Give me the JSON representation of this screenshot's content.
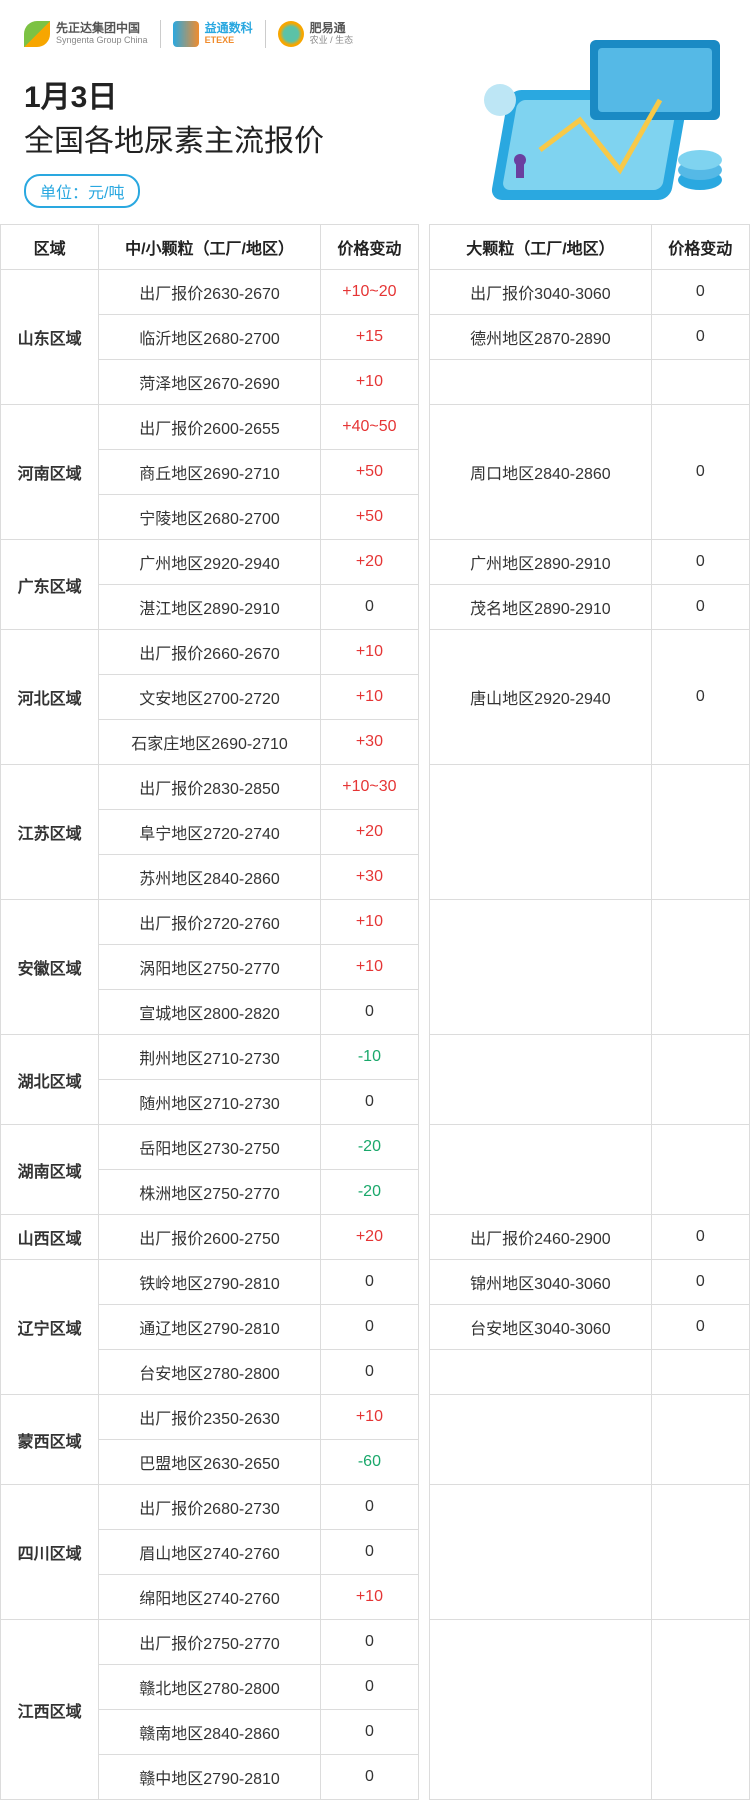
{
  "colors": {
    "border": "#dcdcdc",
    "accent": "#2aa8e0",
    "text": "#333333",
    "up": "#e53535",
    "down": "#1aa86b"
  },
  "logos": {
    "syngenta": {
      "cn": "先正达集团中国",
      "en": "Syngenta Group China",
      "icon_color": "#7cc243"
    },
    "etexe": {
      "cn": "益通数科",
      "en": "ETEXE",
      "icon_color": "#f08c2e"
    },
    "feiyitong": {
      "cn": "肥易通",
      "sub": "农业 / 生态",
      "icon_color": "#5bc2a7"
    }
  },
  "header": {
    "date": "1月3日",
    "title": "全国各地尿素主流报价",
    "unit": "单位：元/吨"
  },
  "table": {
    "headers": {
      "region": "区域",
      "small": "中/小颗粒（工厂/地区）",
      "chgA": "价格变动",
      "large": "大颗粒（工厂/地区）",
      "chgB": "价格变动"
    },
    "regions": [
      {
        "name": "山东区域",
        "small": [
          {
            "label": "出厂报价2630-2670",
            "chg": "+10~20",
            "dir": "up"
          },
          {
            "label": "临沂地区2680-2700",
            "chg": "+15",
            "dir": "up"
          },
          {
            "label": "菏泽地区2670-2690",
            "chg": "+10",
            "dir": "up"
          }
        ],
        "large_rows": [
          {
            "label": "出厂报价3040-3060",
            "chg": "0",
            "dir": "zero",
            "span": 1
          },
          {
            "label": "德州地区2870-2890",
            "chg": "0",
            "dir": "zero",
            "span": 1
          },
          {
            "label": "",
            "chg": "",
            "dir": "zero",
            "span": 1
          }
        ]
      },
      {
        "name": "河南区域",
        "small": [
          {
            "label": "出厂报价2600-2655",
            "chg": "+40~50",
            "dir": "up"
          },
          {
            "label": "商丘地区2690-2710",
            "chg": "+50",
            "dir": "up"
          },
          {
            "label": "宁陵地区2680-2700",
            "chg": "+50",
            "dir": "up"
          }
        ],
        "large_rows": [
          {
            "label": "周口地区2840-2860",
            "chg": "0",
            "dir": "zero",
            "span": 3
          }
        ]
      },
      {
        "name": "广东区域",
        "small": [
          {
            "label": "广州地区2920-2940",
            "chg": "+20",
            "dir": "up"
          },
          {
            "label": "湛江地区2890-2910",
            "chg": "0",
            "dir": "zero"
          }
        ],
        "large_rows": [
          {
            "label": "广州地区2890-2910",
            "chg": "0",
            "dir": "zero",
            "span": 1
          },
          {
            "label": "茂名地区2890-2910",
            "chg": "0",
            "dir": "zero",
            "span": 1
          }
        ]
      },
      {
        "name": "河北区域",
        "small": [
          {
            "label": "出厂报价2660-2670",
            "chg": "+10",
            "dir": "up"
          },
          {
            "label": "文安地区2700-2720",
            "chg": "+10",
            "dir": "up"
          },
          {
            "label": "石家庄地区2690-2710",
            "chg": "+30",
            "dir": "up"
          }
        ],
        "large_rows": [
          {
            "label": "唐山地区2920-2940",
            "chg": "0",
            "dir": "zero",
            "span": 3
          }
        ]
      },
      {
        "name": "江苏区域",
        "small": [
          {
            "label": "出厂报价2830-2850",
            "chg": "+10~30",
            "dir": "up"
          },
          {
            "label": "阜宁地区2720-2740",
            "chg": "+20",
            "dir": "up"
          },
          {
            "label": "苏州地区2840-2860",
            "chg": "+30",
            "dir": "up"
          }
        ],
        "large_rows": [
          {
            "label": "",
            "chg": "",
            "dir": "zero",
            "span": 3
          }
        ]
      },
      {
        "name": "安徽区域",
        "small": [
          {
            "label": "出厂报价2720-2760",
            "chg": "+10",
            "dir": "up"
          },
          {
            "label": "涡阳地区2750-2770",
            "chg": "+10",
            "dir": "up"
          },
          {
            "label": "宣城地区2800-2820",
            "chg": "0",
            "dir": "zero"
          }
        ],
        "large_rows": [
          {
            "label": "",
            "chg": "",
            "dir": "zero",
            "span": 3
          }
        ]
      },
      {
        "name": "湖北区域",
        "small": [
          {
            "label": "荆州地区2710-2730",
            "chg": "-10",
            "dir": "down"
          },
          {
            "label": "随州地区2710-2730",
            "chg": "0",
            "dir": "zero"
          }
        ],
        "large_rows": [
          {
            "label": "",
            "chg": "",
            "dir": "zero",
            "span": 2
          }
        ]
      },
      {
        "name": "湖南区域",
        "small": [
          {
            "label": "岳阳地区2730-2750",
            "chg": "-20",
            "dir": "down"
          },
          {
            "label": "株洲地区2750-2770",
            "chg": "-20",
            "dir": "down"
          }
        ],
        "large_rows": [
          {
            "label": "",
            "chg": "",
            "dir": "zero",
            "span": 2
          }
        ]
      },
      {
        "name": "山西区域",
        "small": [
          {
            "label": "出厂报价2600-2750",
            "chg": "+20",
            "dir": "up"
          }
        ],
        "large_rows": [
          {
            "label": "出厂报价2460-2900",
            "chg": "0",
            "dir": "zero",
            "span": 1
          }
        ]
      },
      {
        "name": "辽宁区域",
        "small": [
          {
            "label": "铁岭地区2790-2810",
            "chg": "0",
            "dir": "zero"
          },
          {
            "label": "通辽地区2790-2810",
            "chg": "0",
            "dir": "zero"
          },
          {
            "label": "台安地区2780-2800",
            "chg": "0",
            "dir": "zero"
          }
        ],
        "large_rows": [
          {
            "label": "锦州地区3040-3060",
            "chg": "0",
            "dir": "zero",
            "span": 1
          },
          {
            "label": "台安地区3040-3060",
            "chg": "0",
            "dir": "zero",
            "span": 1
          },
          {
            "label": "",
            "chg": "",
            "dir": "zero",
            "span": 1
          }
        ]
      },
      {
        "name": "蒙西区域",
        "small": [
          {
            "label": "出厂报价2350-2630",
            "chg": "+10",
            "dir": "up"
          },
          {
            "label": "巴盟地区2630-2650",
            "chg": "-60",
            "dir": "down"
          }
        ],
        "large_rows": [
          {
            "label": "",
            "chg": "",
            "dir": "zero",
            "span": 2
          }
        ]
      },
      {
        "name": "四川区域",
        "small": [
          {
            "label": "出厂报价2680-2730",
            "chg": "0",
            "dir": "zero"
          },
          {
            "label": "眉山地区2740-2760",
            "chg": "0",
            "dir": "zero"
          },
          {
            "label": "绵阳地区2740-2760",
            "chg": "+10",
            "dir": "up"
          }
        ],
        "large_rows": [
          {
            "label": "",
            "chg": "",
            "dir": "zero",
            "span": 3
          }
        ]
      },
      {
        "name": "江西区域",
        "small": [
          {
            "label": "出厂报价2750-2770",
            "chg": "0",
            "dir": "zero"
          },
          {
            "label": "赣北地区2780-2800",
            "chg": "0",
            "dir": "zero"
          },
          {
            "label": "赣南地区2840-2860",
            "chg": "0",
            "dir": "zero"
          },
          {
            "label": "赣中地区2790-2810",
            "chg": "0",
            "dir": "zero"
          }
        ],
        "large_rows": [
          {
            "label": "",
            "chg": "",
            "dir": "zero",
            "span": 4
          }
        ]
      }
    ]
  }
}
